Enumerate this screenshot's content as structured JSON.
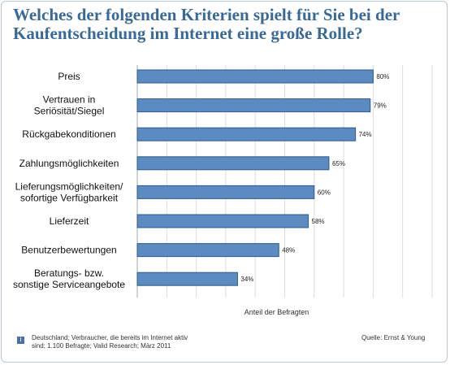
{
  "title": "Welches der folgenden Kriterien spielt für Sie bei der Kaufentscheidung im Internet eine große Rolle?",
  "footer": {
    "note": "Deutschland; Verbraucher, die bereits im Internet aktiv sind; 1.100 Befragte; Valid Research; März 2011",
    "source": "Quelle: Ernst & Young",
    "info_icon": "i"
  },
  "colors": {
    "bar_fill": "#5b8bc0",
    "bar_stroke": "#2f5a8a",
    "title": "#3a6a93",
    "grid": "#d6dde6"
  },
  "chart_data": {
    "type": "bar",
    "orientation": "horizontal",
    "categories": [
      [
        "Preis"
      ],
      [
        "Vertrauen in",
        "Seriösität/Siegel"
      ],
      [
        "Rückgabekonditionen"
      ],
      [
        "Zahlungsmöglichkeiten"
      ],
      [
        "Lieferungsmöglichkeiten/",
        "sofortige Verfügbarkeit"
      ],
      [
        "Lieferzeit"
      ],
      [
        "Benutzerbewertungen"
      ],
      [
        "Beratungs- bzw.",
        "sonstige Serviceangebote"
      ]
    ],
    "values": [
      80,
      79,
      74,
      65,
      60,
      58,
      48,
      34
    ],
    "value_labels": [
      "80%",
      "79%",
      "74%",
      "65%",
      "60%",
      "58%",
      "48%",
      "34%"
    ],
    "xlabel": "Anteil der Befragten",
    "xlim": [
      0,
      100
    ],
    "grid": true
  }
}
